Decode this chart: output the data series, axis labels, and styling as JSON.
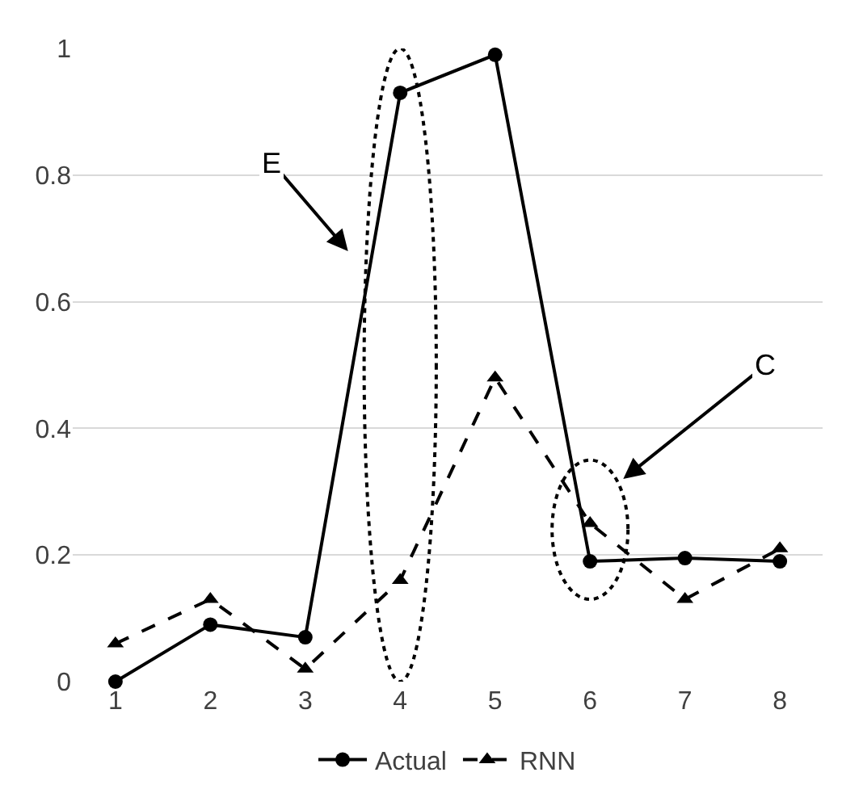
{
  "chart_data": {
    "type": "line",
    "categories": [
      "1",
      "2",
      "3",
      "4",
      "5",
      "6",
      "7",
      "8"
    ],
    "series": [
      {
        "name": "Actual",
        "color": "#000000",
        "marker": "circle",
        "line_style": "solid",
        "values": [
          0,
          0.09,
          0.07,
          0.93,
          0.99,
          0.19,
          0.195,
          0.19
        ]
      },
      {
        "name": "RNN",
        "color": "#000000",
        "marker": "triangle",
        "line_style": "dashed",
        "values": [
          0.06,
          0.13,
          0.02,
          0.16,
          0.48,
          0.25,
          0.13,
          0.21
        ]
      }
    ],
    "ylim": [
      0,
      1
    ],
    "yticks": [
      0,
      0.2,
      0.4,
      0.6,
      0.8,
      1
    ],
    "grid": "y",
    "legend": "bottom",
    "annotations": [
      "E",
      "C"
    ]
  }
}
